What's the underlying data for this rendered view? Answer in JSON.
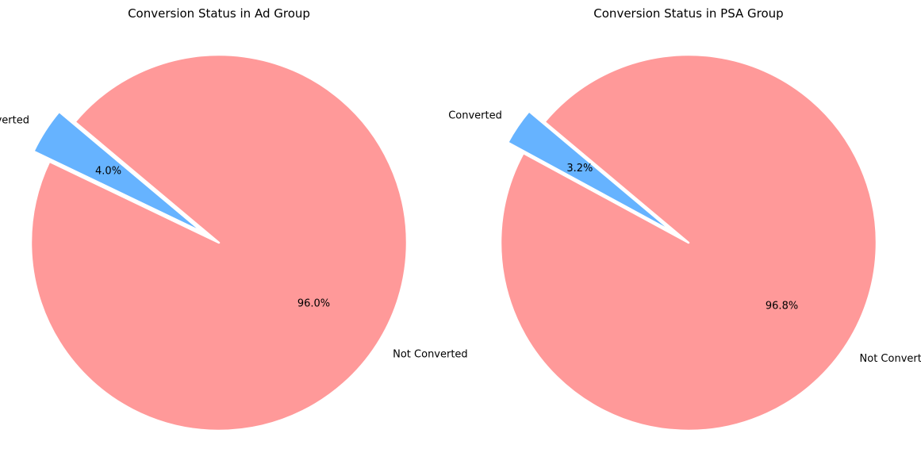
{
  "colors": {
    "converted": "#66b3ff",
    "not_converted": "#ff9999",
    "edge": "#ffffff",
    "background": "#ffffff"
  },
  "chart_data": [
    {
      "type": "pie",
      "title": "Conversion Status in Ad Group",
      "categories": [
        "Converted",
        "Not Converted"
      ],
      "values": [
        4.0,
        96.0
      ],
      "percent_labels": [
        "4.0%",
        "96.0%"
      ],
      "explode": [
        0.1,
        0
      ],
      "start_angle_deg": 140
    },
    {
      "type": "pie",
      "title": "Conversion Status in PSA Group",
      "categories": [
        "Converted",
        "Not Converted"
      ],
      "values": [
        3.2,
        96.8
      ],
      "percent_labels": [
        "3.2%",
        "96.8%"
      ],
      "explode": [
        0.1,
        0
      ],
      "start_angle_deg": 140
    }
  ]
}
